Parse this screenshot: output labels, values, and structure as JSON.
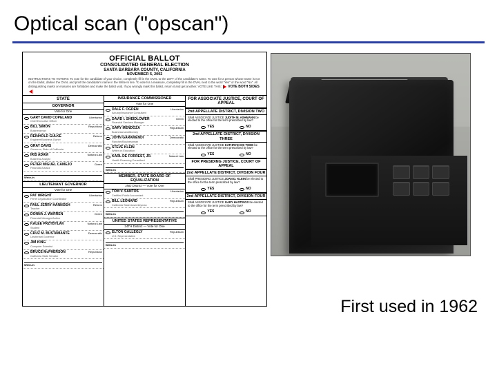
{
  "title": "Optical scan (\"opscan\")",
  "underline_color": "#2a3ea0",
  "footer": "First used in 1962",
  "ballot": {
    "title": "OFFICIAL BALLOT",
    "subtitle": "CONSOLIDATED GENERAL ELECTION",
    "county": "SANTA BARBARA COUNTY, CALIFORNIA",
    "date": "NOVEMBER 5, 2002",
    "instructions": "INSTRUCTIONS TO VOTERS: To vote for the candidate of your choice, completely fill in the OVAL to the LEFT of the candidate's name. To vote for a person whose name is not on the ballot, darken the OVAL and print the candidate's name in the Write-In line. To vote for a measure, completely fill in the OVAL next to the word \"Yes\" or the word \"No\". All distinguishing marks or erasures are forbidden and make the ballot void. If you wrongly mark this ballot, return it and get another. VOTE LIKE THIS:",
    "vote_both": "VOTE BOTH SIDES",
    "col1": {
      "header": "STATE",
      "sections": [
        {
          "title": "GOVERNOR",
          "sub": "Vote for One",
          "cands": [
            {
              "n": "GARY DAVID COPELAND",
              "d": "Chief Executive Officer",
              "p": "Libertarian"
            },
            {
              "n": "BILL SIMON",
              "d": "Businessman",
              "p": "Republican"
            },
            {
              "n": "REINHOLD GULKE",
              "d": "Engineer/Business Owner",
              "p": "Reform"
            },
            {
              "n": "GRAY DAVIS",
              "d": "Governor, State of California",
              "p": "Democratic"
            },
            {
              "n": "IRIS ADAM",
              "d": "Business Analyst",
              "p": "Natural Law"
            },
            {
              "n": "PETER MIGUEL CAMEJO",
              "d": "Financial Advisor",
              "p": "Green"
            }
          ]
        },
        {
          "title": "LIEUTENANT GOVERNOR",
          "sub": "Vote for One",
          "cands": [
            {
              "n": "PAT WRIGHT",
              "d": "Ferret Legalization Coordinator",
              "p": "Libertarian"
            },
            {
              "n": "PAUL JERRY HANNOSH",
              "d": "Teacher",
              "p": "Reform"
            },
            {
              "n": "DONNA J. WARREN",
              "d": "Financial Manager/Author",
              "p": "Green"
            },
            {
              "n": "KALEE PRZYBYLAK",
              "d": "Student",
              "p": "Natural Law"
            },
            {
              "n": "CRUZ M. BUSTAMANTE",
              "d": "Lieutenant Governor",
              "p": "Democratic"
            },
            {
              "n": "JIM KING",
              "d": "Computer Scientist",
              "p": ""
            },
            {
              "n": "BRUCE McPHERSON",
              "d": "California State Senator",
              "p": "Republican"
            }
          ]
        }
      ]
    },
    "col2": {
      "sections": [
        {
          "title": "INSURANCE COMMISSIONER",
          "sub": "Vote for One",
          "cands": [
            {
              "n": "DALE F. OGDEN",
              "d": "Actuary/Insurance Consultant",
              "p": "Libertarian"
            },
            {
              "n": "DAVID I. SHEIDLOWER",
              "d": "Financial Services Manager",
              "p": "Green"
            },
            {
              "n": "GARY MENDOZA",
              "d": "Businessman/Attorney",
              "p": "Republican"
            },
            {
              "n": "JOHN GARAMENDI",
              "d": "Rancher/Businessman",
              "p": "Democratic"
            },
            {
              "n": "STEVE KLEIN",
              "d": "Writer on Education",
              "p": ""
            },
            {
              "n": "KARL DE FORREST, JR.",
              "d": "Health Financing Consultant",
              "p": "Natural Law"
            }
          ]
        },
        {
          "title": "MEMBER, STATE BOARD OF EQUALIZATION",
          "sub": "2ND District — Vote for One",
          "cands": [
            {
              "n": "TOM V. SANTOS",
              "d": "Certified Public Accountant",
              "p": "Libertarian"
            },
            {
              "n": "BILL LEONARD",
              "d": "California State Assemblyman",
              "p": "Republican"
            }
          ]
        },
        {
          "title": "UNITED STATES REPRESENTATIVE",
          "sub": "24TH District — Vote for One",
          "cands": [
            {
              "n": "ELTON GALLEGLY",
              "d": "U.S. Representative",
              "p": "Republican"
            }
          ]
        }
      ]
    },
    "col3": {
      "header": "FOR ASSOCIATE JUSTICE, COURT OF APPEAL",
      "items": [
        {
          "district": "2nd APPELLATE DISTRICT, DIVISION TWO",
          "q_prefix": "Shall ASSOCIATE JUSTICE ",
          "name": "JUDITH M. ASHMANN",
          "q_suffix": " be elected to the office for the term prescribed by law?"
        },
        {
          "district": "2nd APPELLATE DISTRICT, DIVISION THREE",
          "q_prefix": "Shall ASSOCIATE JUSTICE ",
          "name": "KATHRYN DOI TODD",
          "q_suffix": " be elected to the office for the term prescribed by law?"
        },
        {
          "header2": "FOR PRESIDING JUSTICE, COURT OF APPEAL",
          "district": "2nd APPELLATE DISTRICT, DIVISION FOUR",
          "q_prefix": "Shall PRESIDING JUSTICE ",
          "name": "JOAN D. KLEIN",
          "q_suffix": " be elected to the office for the term prescribed by law?"
        },
        {
          "district": "2nd APPELLATE DISTRICT, DIVISION FOUR",
          "q_prefix": "Shall ASSOCIATE JUSTICE ",
          "name": "GARY HASTINGS",
          "q_suffix": " be elected to the office for the term prescribed by law?"
        }
      ],
      "yes": "YES",
      "no": "NO"
    }
  }
}
